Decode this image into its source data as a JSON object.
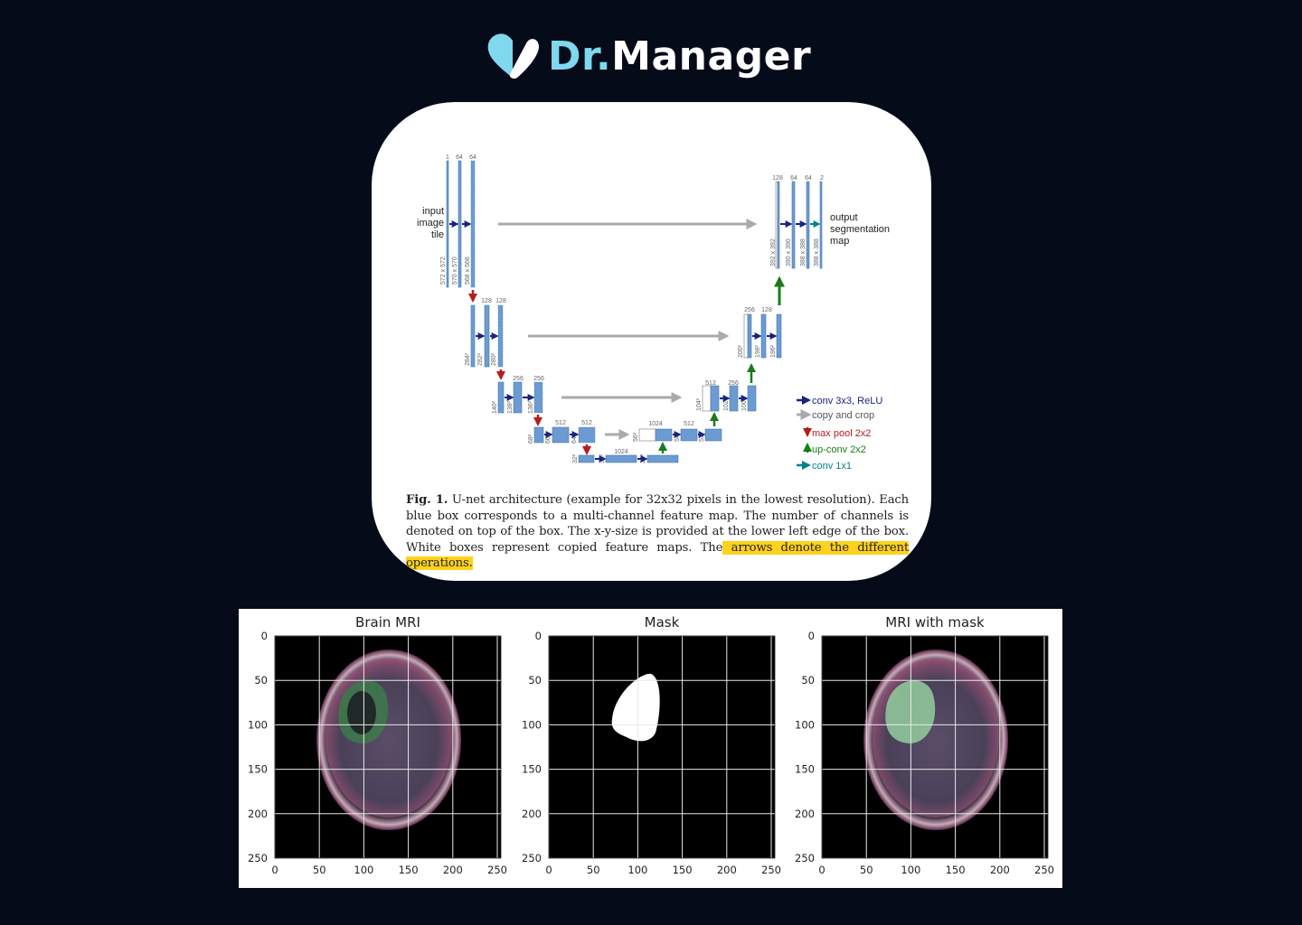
{
  "brand": {
    "part1": "Dr.",
    "part2": "Manager",
    "accent": "#7fd8ee",
    "icon": "heart-logo-icon"
  },
  "figure": {
    "input_label": [
      "input",
      "image",
      "tile"
    ],
    "output_label": [
      "output",
      "segmentation",
      "map"
    ],
    "channels": {
      "l1": [
        "1",
        "64",
        "64"
      ],
      "l2": [
        "128",
        "128"
      ],
      "l3": [
        "256",
        "256"
      ],
      "l4": [
        "512",
        "512"
      ],
      "l5": [
        "1024"
      ],
      "l5b": [
        "1024"
      ],
      "r4": [
        "512"
      ],
      "r3": [
        "512",
        "256"
      ],
      "r2": [
        "256",
        "128"
      ],
      "r1": [
        "128",
        "64",
        "64",
        "2"
      ]
    },
    "sizes": {
      "l1": [
        "572 x 572",
        "570 x 570",
        "568 x 568"
      ],
      "l2": [
        "284²",
        "282²",
        "280²"
      ],
      "l3": [
        "140²",
        "138²",
        "136²"
      ],
      "l4": [
        "68²",
        "66²",
        "64²"
      ],
      "l5": [
        "32²",
        "30²",
        "28²"
      ],
      "r4": [
        "56²",
        "54²",
        "52²"
      ],
      "r3": [
        "104²",
        "102²",
        "100²"
      ],
      "r2": [
        "200²",
        "198²",
        "196²"
      ],
      "r1": [
        "392 x 392",
        "390 x 390",
        "388 x 388",
        "388 x 388"
      ]
    },
    "legend": [
      {
        "label": "conv 3x3, ReLU",
        "color": "#1a237e"
      },
      {
        "label": "copy and crop",
        "color": "#555555"
      },
      {
        "label": "max pool 2x2",
        "color": "#b71c1c"
      },
      {
        "label": "up-conv 2x2",
        "color": "#1b7a1b"
      },
      {
        "label": "conv 1x1",
        "color": "#00838f"
      }
    ],
    "caption_label": "Fig. 1.",
    "caption_text": " U-net architecture (example for 32x32 pixels in the lowest resolution). Each blue box corresponds to a multi-channel feature map. The number of channels is denoted on top of the box. The x-y-size is provided at the lower left edge of the box. White boxes represent copied feature maps. The",
    "caption_highlight": " arrows denote the different operations."
  },
  "plots": [
    {
      "title": "Brain MRI"
    },
    {
      "title": "Mask"
    },
    {
      "title": "MRI with mask"
    }
  ],
  "axis": {
    "ticks": [
      "0",
      "50",
      "100",
      "150",
      "200",
      "250"
    ]
  }
}
